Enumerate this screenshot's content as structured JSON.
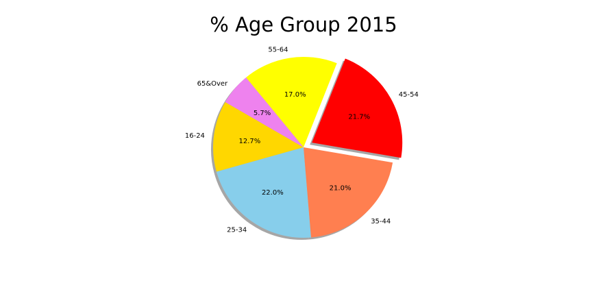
{
  "chart_data": {
    "type": "pie",
    "title": "% Age Group 2015",
    "slices": [
      {
        "label": "16-24",
        "value": 12.7,
        "pct_label": "12.7%",
        "color": "#ffd700",
        "explode": false
      },
      {
        "label": "25-34",
        "value": 22.0,
        "pct_label": "22.0%",
        "color": "#87ceeb",
        "explode": false
      },
      {
        "label": "35-44",
        "value": 21.0,
        "pct_label": "21.0%",
        "color": "#ff7f50",
        "explode": false
      },
      {
        "label": "45-54",
        "value": 21.7,
        "pct_label": "21.7%",
        "color": "#ff0000",
        "explode": true
      },
      {
        "label": "55-64",
        "value": 17.0,
        "pct_label": "17.0%",
        "color": "#ffff00",
        "explode": false
      },
      {
        "label": "65&Over",
        "value": 5.7,
        "pct_label": "5.7%",
        "color": "#ee82ee",
        "explode": false
      }
    ],
    "shadow": true,
    "legend": "none"
  }
}
